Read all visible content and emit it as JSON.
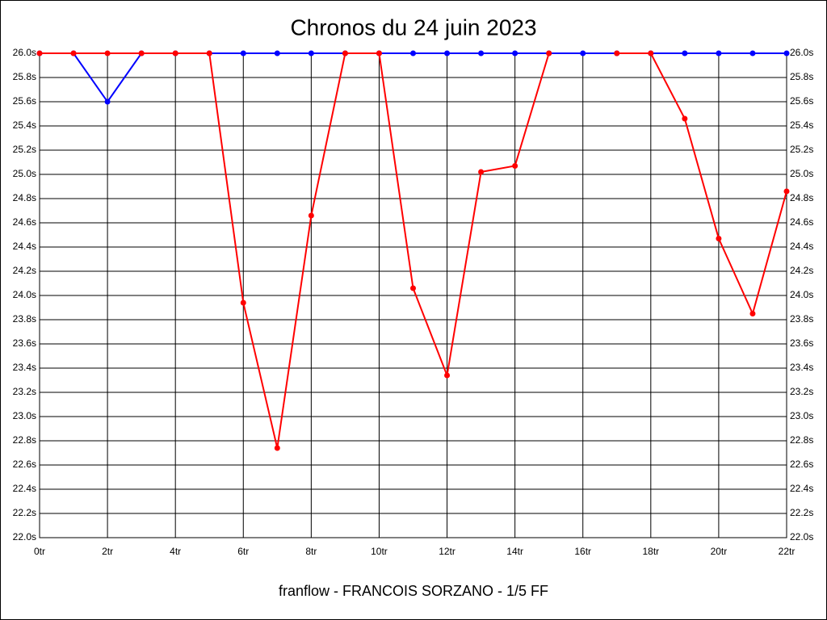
{
  "chart_data": {
    "type": "line",
    "title": "Chronos du 24 juin 2023",
    "footer": "franflow - FRANCOIS SORZANO - 1/5 FF",
    "x": [
      0,
      1,
      2,
      3,
      4,
      5,
      6,
      7,
      8,
      9,
      10,
      11,
      12,
      13,
      14,
      15,
      16,
      17,
      18,
      19,
      20,
      21,
      22
    ],
    "xlim": [
      0,
      22
    ],
    "xticks": [
      {
        "value": 0,
        "label": "0tr"
      },
      {
        "value": 2,
        "label": "2tr"
      },
      {
        "value": 4,
        "label": "4tr"
      },
      {
        "value": 6,
        "label": "6tr"
      },
      {
        "value": 8,
        "label": "8tr"
      },
      {
        "value": 10,
        "label": "10tr"
      },
      {
        "value": 12,
        "label": "12tr"
      },
      {
        "value": 14,
        "label": "14tr"
      },
      {
        "value": 16,
        "label": "16tr"
      },
      {
        "value": 18,
        "label": "18tr"
      },
      {
        "value": 20,
        "label": "20tr"
      },
      {
        "value": 22,
        "label": "22tr"
      }
    ],
    "ylim": [
      22.0,
      26.0
    ],
    "yticks": [
      {
        "value": 22.0,
        "label": "22.0s"
      },
      {
        "value": 22.2,
        "label": "22.2s"
      },
      {
        "value": 22.4,
        "label": "22.4s"
      },
      {
        "value": 22.6,
        "label": "22.6s"
      },
      {
        "value": 22.8,
        "label": "22.8s"
      },
      {
        "value": 23.0,
        "label": "23.0s"
      },
      {
        "value": 23.2,
        "label": "23.2s"
      },
      {
        "value": 23.4,
        "label": "23.4s"
      },
      {
        "value": 23.6,
        "label": "23.6s"
      },
      {
        "value": 23.8,
        "label": "23.8s"
      },
      {
        "value": 24.0,
        "label": "24.0s"
      },
      {
        "value": 24.2,
        "label": "24.2s"
      },
      {
        "value": 24.4,
        "label": "24.4s"
      },
      {
        "value": 24.6,
        "label": "24.6s"
      },
      {
        "value": 24.8,
        "label": "24.8s"
      },
      {
        "value": 25.0,
        "label": "25.0s"
      },
      {
        "value": 25.2,
        "label": "25.2s"
      },
      {
        "value": 25.4,
        "label": "25.4s"
      },
      {
        "value": 25.6,
        "label": "25.6s"
      },
      {
        "value": 25.8,
        "label": "25.8s"
      },
      {
        "value": 26.0,
        "label": "26.0s"
      }
    ],
    "grid": true,
    "series": [
      {
        "color": "#0000ff",
        "values": [
          26.0,
          26.0,
          25.6,
          26.0,
          26.0,
          26.0,
          26.0,
          26.0,
          26.0,
          26.0,
          26.0,
          26.0,
          26.0,
          26.0,
          26.0,
          26.0,
          26.0,
          26.0,
          26.0,
          26.0,
          26.0,
          26.0,
          26.0
        ]
      },
      {
        "color": "#ff0000",
        "values": [
          26.0,
          26.0,
          26.0,
          26.0,
          26.0,
          26.0,
          23.94,
          22.74,
          24.66,
          26.0,
          26.0,
          24.06,
          23.34,
          25.02,
          25.07,
          26.0,
          null,
          26.0,
          26.0,
          25.46,
          24.47,
          23.85,
          24.86
        ]
      }
    ]
  }
}
